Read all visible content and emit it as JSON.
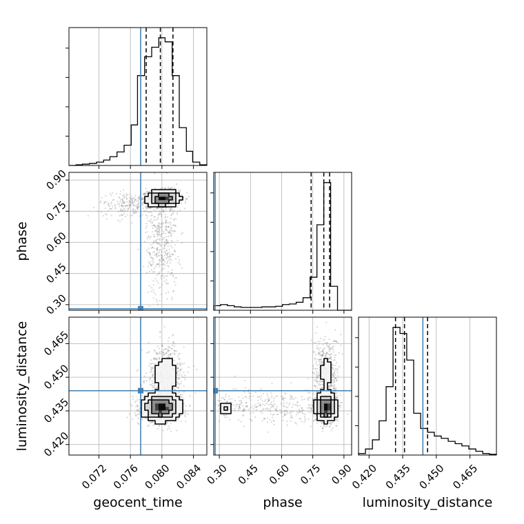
{
  "chart_data": {
    "type": "corner",
    "parameters": [
      "geocent_time",
      "phase",
      "luminosity_distance"
    ],
    "truth": {
      "geocent_time": 0.0773,
      "phase": 0.28,
      "luminosity_distance": 0.444
    },
    "truth_color": "#4682b4",
    "grid": true,
    "ticks": {
      "geocent_time": [
        "0.072",
        "0.076",
        "0.080",
        "0.084"
      ],
      "phase": [
        "0.30",
        "0.45",
        "0.60",
        "0.75",
        "0.90"
      ],
      "luminosity_distance": [
        "0.420",
        "0.435",
        "0.450",
        "0.465"
      ]
    },
    "ranges": {
      "geocent_time": [
        0.0682,
        0.0857
      ],
      "phase": [
        0.273,
        0.937
      ],
      "luminosity_distance": [
        0.4153,
        0.4768
      ]
    },
    "marginals": {
      "geocent_time": {
        "bin_edges": [
          0.0682,
          0.0691,
          0.0699,
          0.0708,
          0.0717,
          0.0726,
          0.0734,
          0.0743,
          0.0752,
          0.0761,
          0.0769,
          0.0778,
          0.0787,
          0.0796,
          0.0804,
          0.0813,
          0.0822,
          0.0831,
          0.0839,
          0.0848,
          0.0857
        ],
        "counts": [
          0,
          1,
          2,
          3,
          5,
          8,
          13,
          20,
          30,
          60,
          133,
          161,
          175,
          189,
          183,
          133,
          56,
          21,
          5,
          1
        ],
        "quantiles": [
          0.078,
          0.0798,
          0.0814
        ]
      },
      "phase": {
        "bin_edges": [
          0.273,
          0.306,
          0.339,
          0.372,
          0.405,
          0.438,
          0.472,
          0.505,
          0.538,
          0.571,
          0.604,
          0.637,
          0.67,
          0.703,
          0.737,
          0.77,
          0.803,
          0.836,
          0.869,
          0.902,
          0.937
        ],
        "counts": [
          8,
          10,
          8,
          6,
          5,
          5,
          5,
          6,
          6,
          7,
          10,
          11,
          14,
          22,
          58,
          150,
          224,
          42,
          0,
          0
        ],
        "quantiles": [
          0.742,
          0.803,
          0.831
        ]
      },
      "luminosity_distance": {
        "bin_edges": [
          0.4153,
          0.4184,
          0.4215,
          0.4245,
          0.4276,
          0.4307,
          0.4338,
          0.4368,
          0.4399,
          0.443,
          0.4461,
          0.4491,
          0.4522,
          0.4553,
          0.4584,
          0.4614,
          0.4645,
          0.4676,
          0.4707,
          0.4737,
          0.4768
        ],
        "counts": [
          2,
          8,
          20,
          45,
          90,
          168,
          160,
          125,
          55,
          35,
          30,
          25,
          22,
          18,
          15,
          12,
          8,
          5,
          2,
          1
        ],
        "quantiles": [
          0.4318,
          0.4358,
          0.4461
        ]
      }
    },
    "joint": [
      {
        "x": "geocent_time",
        "y": "phase",
        "peaks": [
          {
            "x": 0.0802,
            "y": 0.812,
            "weight": 0.7,
            "sx": 0.001,
            "sy": 0.02
          },
          {
            "x": 0.08,
            "y": 0.6,
            "weight": 0.2,
            "sx": 0.001,
            "sy": 0.14
          },
          {
            "x": 0.076,
            "y": 0.78,
            "weight": 0.1,
            "sx": 0.002,
            "sy": 0.03
          }
        ]
      },
      {
        "x": "geocent_time",
        "y": "luminosity_distance",
        "peaks": [
          {
            "x": 0.0799,
            "y": 0.4365,
            "weight": 0.75,
            "sx": 0.0012,
            "sy": 0.003
          },
          {
            "x": 0.0805,
            "y": 0.451,
            "weight": 0.25,
            "sx": 0.0012,
            "sy": 0.007
          }
        ]
      },
      {
        "x": "phase",
        "y": "luminosity_distance",
        "peaks": [
          {
            "x": 0.815,
            "y": 0.4365,
            "weight": 0.6,
            "sx": 0.025,
            "sy": 0.003
          },
          {
            "x": 0.815,
            "y": 0.452,
            "weight": 0.2,
            "sx": 0.03,
            "sy": 0.008
          },
          {
            "x": 0.55,
            "y": 0.437,
            "weight": 0.15,
            "sx": 0.15,
            "sy": 0.004
          },
          {
            "x": 0.33,
            "y": 0.436,
            "weight": 0.05,
            "sx": 0.015,
            "sy": 0.0015
          }
        ]
      }
    ]
  }
}
